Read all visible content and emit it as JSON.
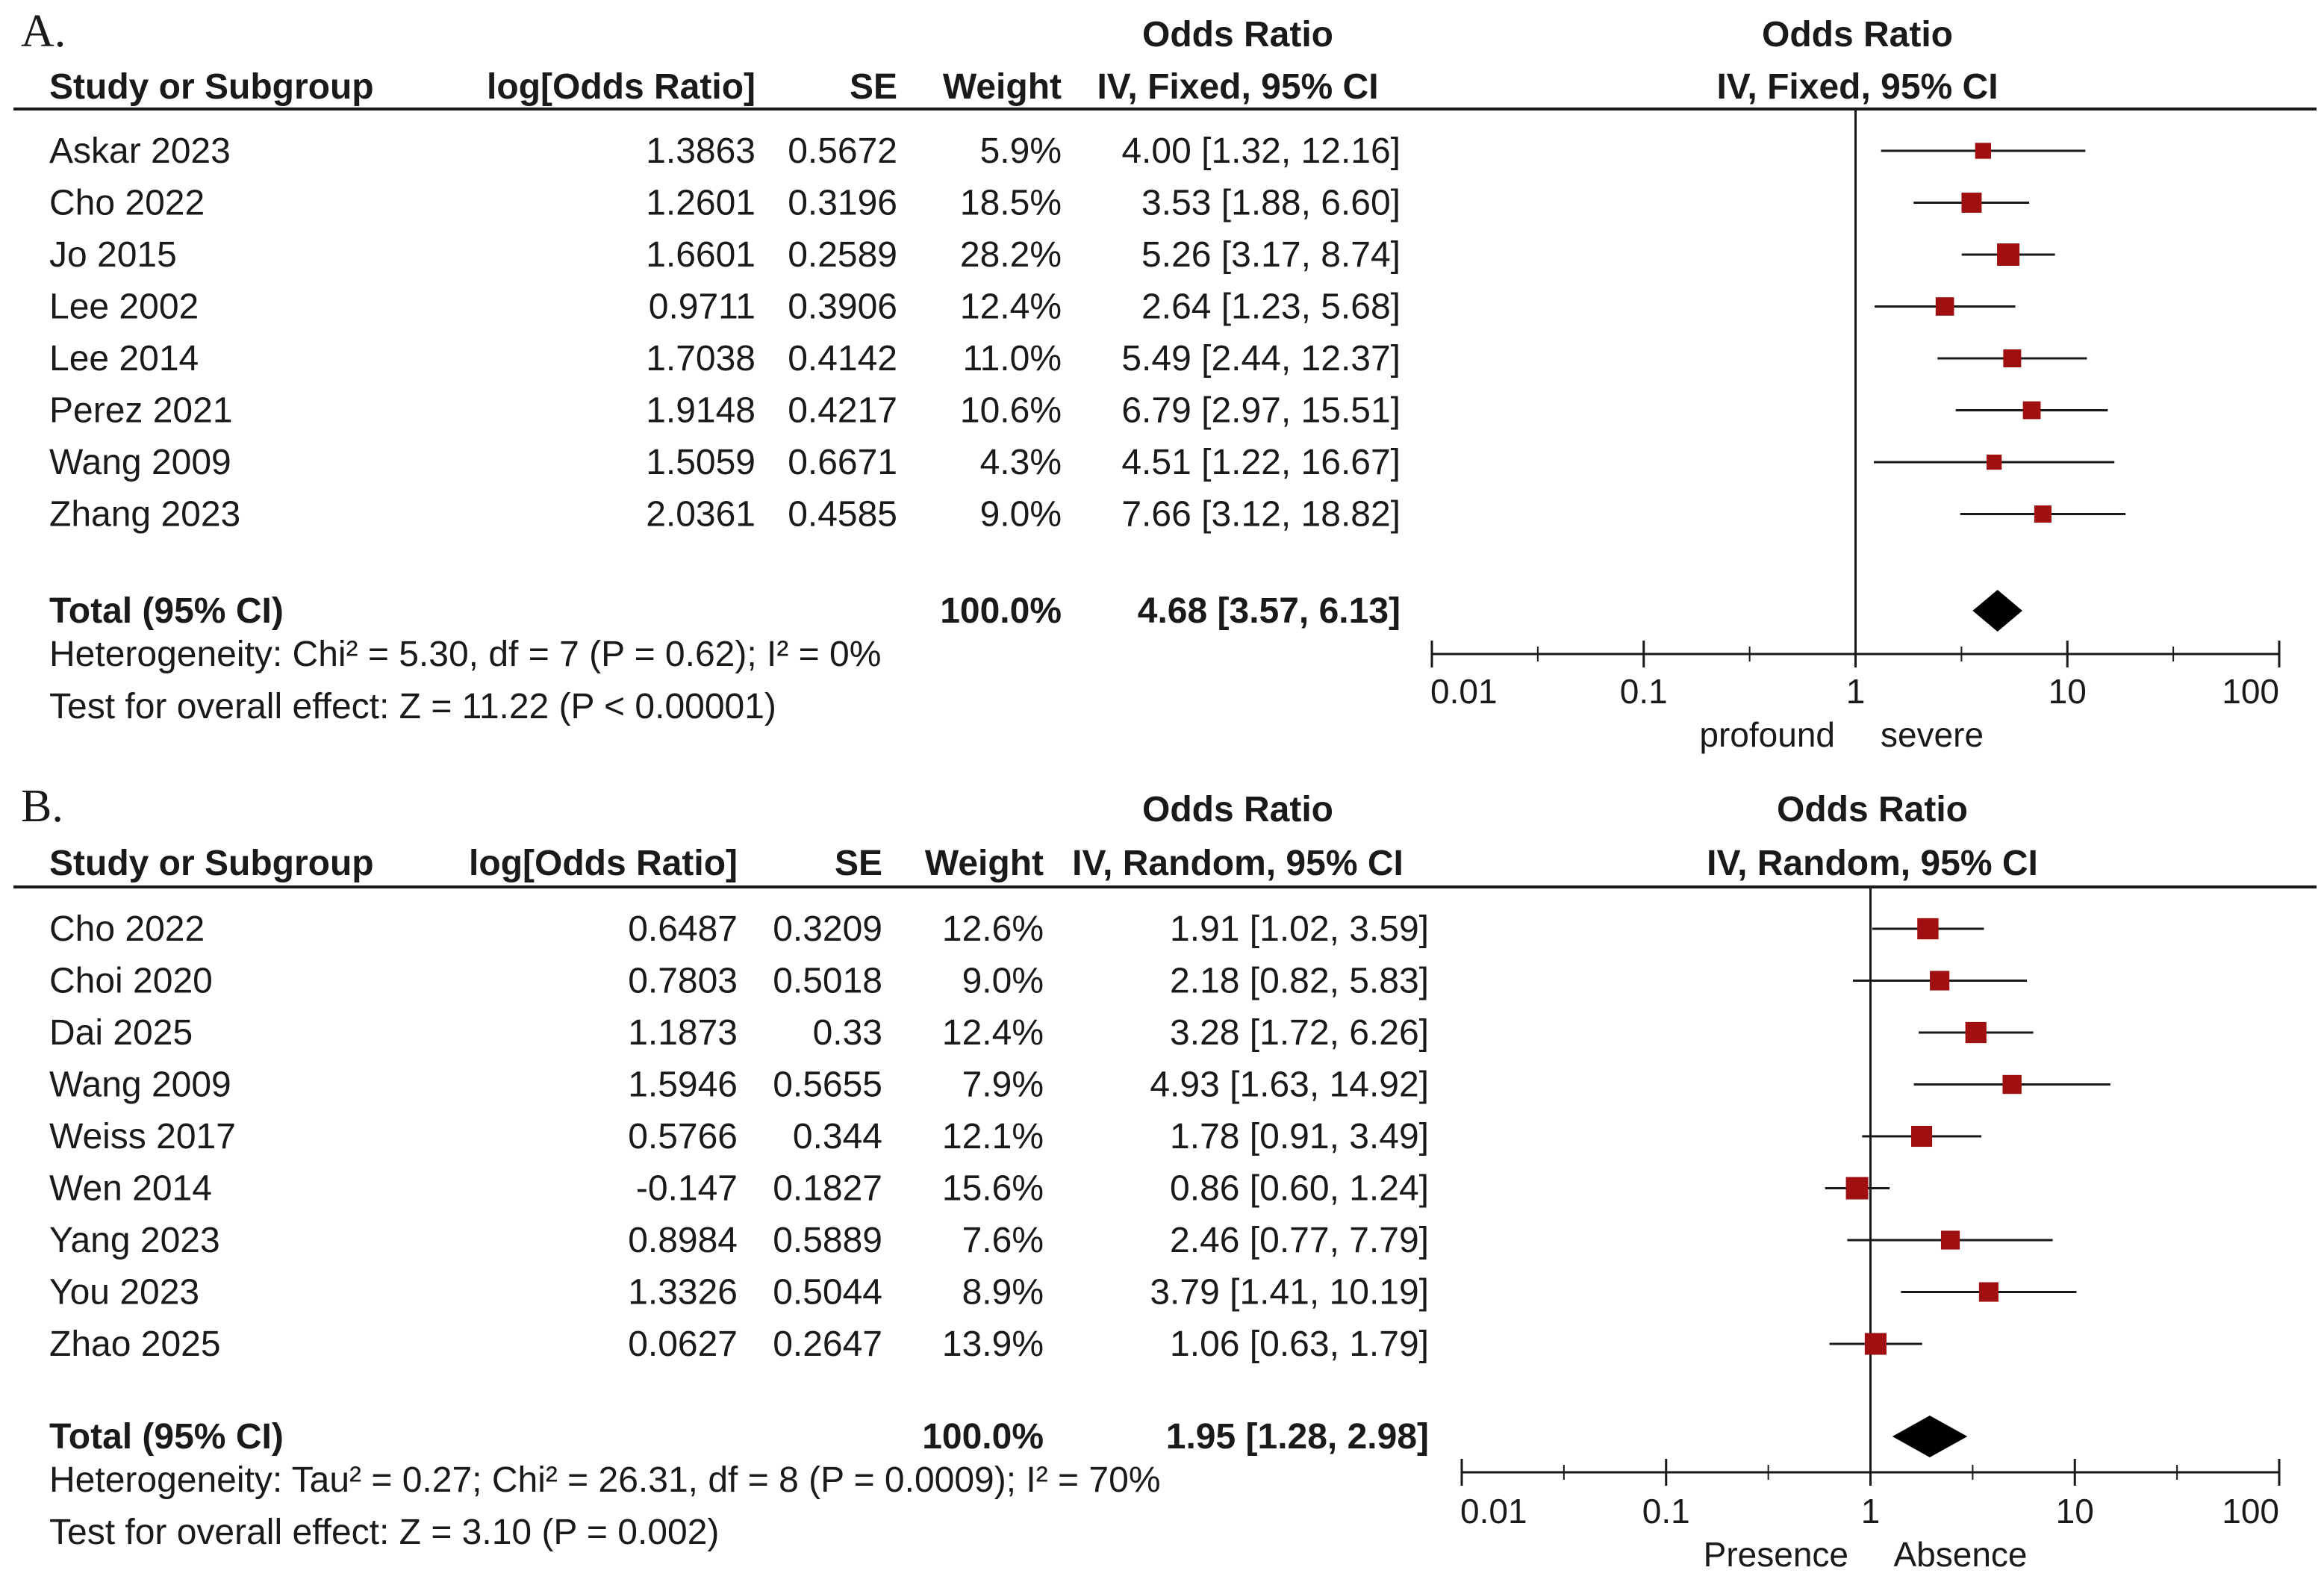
{
  "chart_data": [
    {
      "type": "forest",
      "panel_label": "A.",
      "header_group": "Odds Ratio",
      "columns": [
        "Study or Subgroup",
        "log[Odds Ratio]",
        "SE",
        "Weight",
        "IV, Fixed, 95% CI"
      ],
      "plot_header_group": "Odds Ratio",
      "plot_header": "IV, Fixed, 95% CI",
      "studies": [
        {
          "name": "Askar 2023",
          "log_or": "1.3863",
          "se": "0.5672",
          "weight": "5.9%",
          "ci_text": "4.00 [1.32, 12.16]",
          "or": 4.0,
          "lo": 1.32,
          "hi": 12.16,
          "w": 5.9
        },
        {
          "name": "Cho 2022",
          "log_or": "1.2601",
          "se": "0.3196",
          "weight": "18.5%",
          "ci_text": "3.53 [1.88, 6.60]",
          "or": 3.53,
          "lo": 1.88,
          "hi": 6.6,
          "w": 18.5
        },
        {
          "name": "Jo 2015",
          "log_or": "1.6601",
          "se": "0.2589",
          "weight": "28.2%",
          "ci_text": "5.26 [3.17, 8.74]",
          "or": 5.26,
          "lo": 3.17,
          "hi": 8.74,
          "w": 28.2
        },
        {
          "name": "Lee 2002",
          "log_or": "0.9711",
          "se": "0.3906",
          "weight": "12.4%",
          "ci_text": "2.64 [1.23, 5.68]",
          "or": 2.64,
          "lo": 1.23,
          "hi": 5.68,
          "w": 12.4
        },
        {
          "name": "Lee 2014",
          "log_or": "1.7038",
          "se": "0.4142",
          "weight": "11.0%",
          "ci_text": "5.49 [2.44, 12.37]",
          "or": 5.49,
          "lo": 2.44,
          "hi": 12.37,
          "w": 11.0
        },
        {
          "name": "Perez 2021",
          "log_or": "1.9148",
          "se": "0.4217",
          "weight": "10.6%",
          "ci_text": "6.79 [2.97, 15.51]",
          "or": 6.79,
          "lo": 2.97,
          "hi": 15.51,
          "w": 10.6
        },
        {
          "name": "Wang 2009",
          "log_or": "1.5059",
          "se": "0.6671",
          "weight": "4.3%",
          "ci_text": "4.51 [1.22, 16.67]",
          "or": 4.51,
          "lo": 1.22,
          "hi": 16.67,
          "w": 4.3
        },
        {
          "name": "Zhang 2023",
          "log_or": "2.0361",
          "se": "0.4585",
          "weight": "9.0%",
          "ci_text": "7.66 [3.12, 18.82]",
          "or": 7.66,
          "lo": 3.12,
          "hi": 18.82,
          "w": 9.0
        }
      ],
      "total": {
        "label": "Total (95% CI)",
        "weight": "100.0%",
        "ci_text": "4.68 [3.57, 6.13]",
        "or": 4.68,
        "lo": 3.57,
        "hi": 6.13
      },
      "heterogeneity": "Heterogeneity: Chi² = 5.30, df = 7 (P = 0.62); I² = 0%",
      "overall_effect": "Test for overall effect: Z = 11.22 (P < 0.00001)",
      "x_scale": "log",
      "x_ticks": [
        0.01,
        0.1,
        1,
        10,
        100
      ],
      "x_tick_labels": [
        "0.01",
        "0.1",
        "1",
        "10",
        "100"
      ],
      "favours_left": "profound",
      "favours_right": "severe"
    },
    {
      "type": "forest",
      "panel_label": "B.",
      "header_group": "Odds Ratio",
      "columns": [
        "Study or Subgroup",
        "log[Odds Ratio]",
        "SE",
        "Weight",
        "IV, Random, 95% CI"
      ],
      "plot_header_group": "Odds Ratio",
      "plot_header": "IV, Random, 95% CI",
      "studies": [
        {
          "name": "Cho 2022",
          "log_or": "0.6487",
          "se": "0.3209",
          "weight": "12.6%",
          "ci_text": "1.91 [1.02, 3.59]",
          "or": 1.91,
          "lo": 1.02,
          "hi": 3.59,
          "w": 12.6
        },
        {
          "name": "Choi 2020",
          "log_or": "0.7803",
          "se": "0.5018",
          "weight": "9.0%",
          "ci_text": "2.18 [0.82, 5.83]",
          "or": 2.18,
          "lo": 0.82,
          "hi": 5.83,
          "w": 9.0
        },
        {
          "name": "Dai 2025",
          "log_or": "1.1873",
          "se": "0.33",
          "weight": "12.4%",
          "ci_text": "3.28 [1.72, 6.26]",
          "or": 3.28,
          "lo": 1.72,
          "hi": 6.26,
          "w": 12.4
        },
        {
          "name": "Wang 2009",
          "log_or": "1.5946",
          "se": "0.5655",
          "weight": "7.9%",
          "ci_text": "4.93 [1.63, 14.92]",
          "or": 4.93,
          "lo": 1.63,
          "hi": 14.92,
          "w": 7.9
        },
        {
          "name": "Weiss 2017",
          "log_or": "0.5766",
          "se": "0.344",
          "weight": "12.1%",
          "ci_text": "1.78 [0.91, 3.49]",
          "or": 1.78,
          "lo": 0.91,
          "hi": 3.49,
          "w": 12.1
        },
        {
          "name": "Wen 2014",
          "log_or": "-0.147",
          "se": "0.1827",
          "weight": "15.6%",
          "ci_text": "0.86 [0.60, 1.24]",
          "or": 0.86,
          "lo": 0.6,
          "hi": 1.24,
          "w": 15.6
        },
        {
          "name": "Yang 2023",
          "log_or": "0.8984",
          "se": "0.5889",
          "weight": "7.6%",
          "ci_text": "2.46 [0.77, 7.79]",
          "or": 2.46,
          "lo": 0.77,
          "hi": 7.79,
          "w": 7.6
        },
        {
          "name": "You 2023",
          "log_or": "1.3326",
          "se": "0.5044",
          "weight": "8.9%",
          "ci_text": "3.79 [1.41, 10.19]",
          "or": 3.79,
          "lo": 1.41,
          "hi": 10.19,
          "w": 8.9
        },
        {
          "name": "Zhao 2025",
          "log_or": "0.0627",
          "se": "0.2647",
          "weight": "13.9%",
          "ci_text": "1.06 [0.63, 1.79]",
          "or": 1.06,
          "lo": 0.63,
          "hi": 1.79,
          "w": 13.9
        }
      ],
      "total": {
        "label": "Total (95% CI)",
        "weight": "100.0%",
        "ci_text": "1.95 [1.28, 2.98]",
        "or": 1.95,
        "lo": 1.28,
        "hi": 2.98
      },
      "heterogeneity": "Heterogeneity: Tau² = 0.27; Chi² = 26.31, df = 8 (P = 0.0009); I² = 70%",
      "overall_effect": "Test for overall effect: Z = 3.10 (P = 0.002)",
      "x_scale": "log",
      "x_ticks": [
        0.01,
        0.1,
        1,
        10,
        100
      ],
      "x_tick_labels": [
        "0.01",
        "0.1",
        "1",
        "10",
        "100"
      ],
      "favours_left": "Presence",
      "favours_right": "Absence"
    }
  ],
  "colors": {
    "marker": "#a01010",
    "ink": "#1a1a1a",
    "background": "#ffffff"
  }
}
